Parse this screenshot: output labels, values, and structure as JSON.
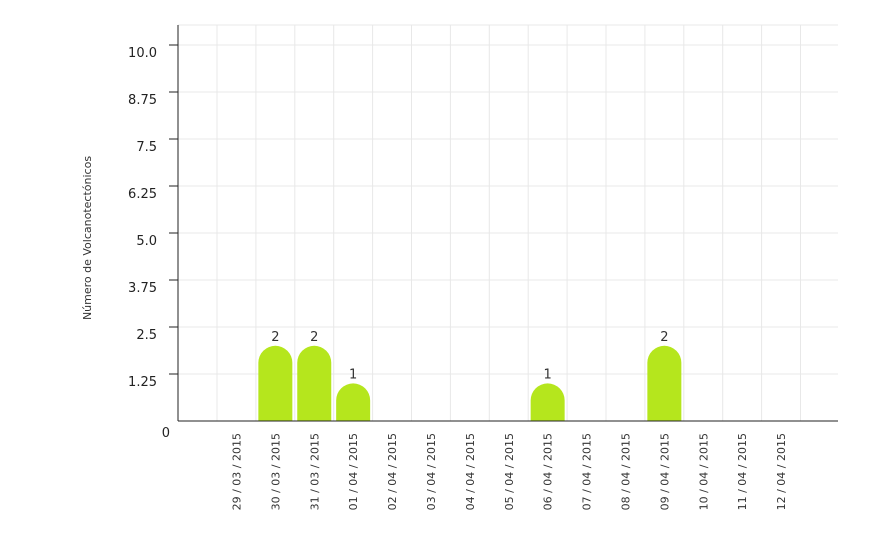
{
  "chart_data": {
    "type": "bar",
    "title": "",
    "xlabel": "",
    "ylabel": "Número de Volcanotectónicos",
    "categories": [
      "29 / 03 / 2015",
      "30 / 03 / 2015",
      "31 / 03 / 2015",
      "01 / 04 / 2015",
      "02 / 04 / 2015",
      "03 / 04 / 2015",
      "04 / 04 / 2015",
      "05 / 04 / 2015",
      "06 / 04 / 2015",
      "07 / 04 / 2015",
      "08 / 04 / 2015",
      "09 / 04 / 2015",
      "10 / 04 / 2015",
      "11 / 04 / 2015",
      "12 / 04 / 2015"
    ],
    "values": [
      0,
      2,
      2,
      1,
      0,
      0,
      0,
      0,
      1,
      0,
      0,
      2,
      0,
      0,
      0
    ],
    "ylim": [
      0,
      10
    ],
    "yticks": [
      "0",
      "1.25",
      "2.5",
      "3.75",
      "5.0",
      "6.25",
      "7.5",
      "8.75",
      "10.0"
    ],
    "grid": true,
    "bar_color": "#b5e61d"
  }
}
